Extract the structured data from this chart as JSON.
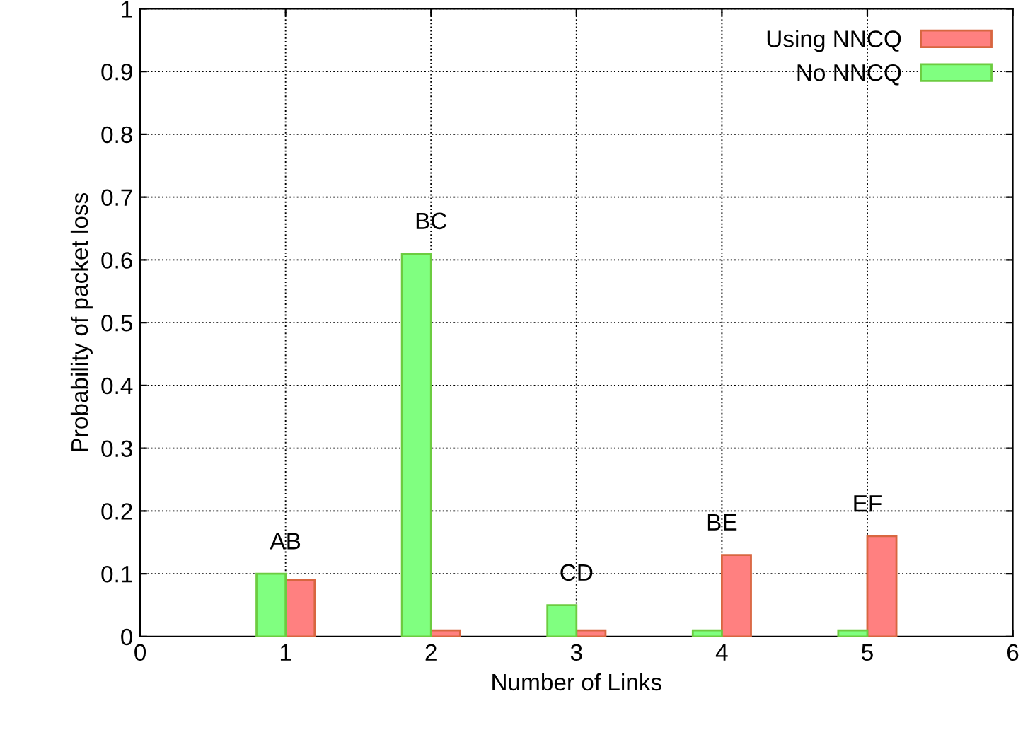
{
  "chart_data": {
    "type": "bar",
    "xlabel": "Number of Links",
    "ylabel": "Probability of packet loss",
    "x": [
      1,
      2,
      3,
      4,
      5
    ],
    "series": [
      {
        "name": "Using NNCQ",
        "color": "#ff8080",
        "values": [
          0.09,
          0.01,
          0.01,
          0.13,
          0.16
        ]
      },
      {
        "name": "No NNCQ",
        "color": "#80ff80",
        "values": [
          0.1,
          0.61,
          0.05,
          0.01,
          0.01
        ]
      }
    ],
    "xlim": [
      0,
      6
    ],
    "xticks": [
      0,
      1,
      2,
      3,
      4,
      5,
      6
    ],
    "ylim": [
      0,
      1
    ],
    "yticks": [
      0,
      0.1,
      0.2,
      0.3,
      0.4,
      0.5,
      0.6,
      0.7,
      0.8,
      0.9,
      1
    ],
    "grid": true,
    "legend": "top right",
    "annotations": [
      {
        "text": "AB",
        "x": 1,
        "y": 0.1
      },
      {
        "text": "BC",
        "x": 2,
        "y": 0.61
      },
      {
        "text": "CD",
        "x": 3,
        "y": 0.05
      },
      {
        "text": "BE",
        "x": 4,
        "y": 0.13
      },
      {
        "text": "EF",
        "x": 5,
        "y": 0.16
      }
    ]
  }
}
